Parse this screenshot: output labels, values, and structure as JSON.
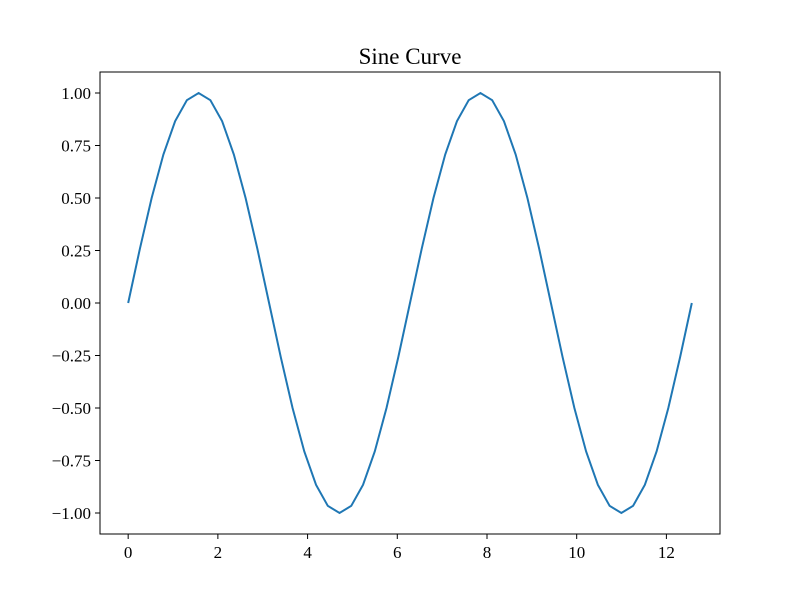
{
  "chart_data": {
    "type": "line",
    "title": "Sine Curve",
    "xlabel": "",
    "ylabel": "",
    "xlim": [
      -0.628,
      13.195
    ],
    "ylim": [
      -1.1,
      1.1
    ],
    "grid": false,
    "xticks": [
      0,
      2,
      4,
      6,
      8,
      10,
      12
    ],
    "xtick_labels": [
      "0",
      "2",
      "4",
      "6",
      "8",
      "10",
      "12"
    ],
    "yticks": [
      -1,
      -0.75,
      -0.5,
      -0.25,
      0,
      0.25,
      0.5,
      0.75,
      1
    ],
    "ytick_labels": [
      "−1.00",
      "−0.75",
      "−0.50",
      "−0.25",
      "0.00",
      "0.25",
      "0.50",
      "0.75",
      "1.00"
    ],
    "series": [
      {
        "color": "#1f77b4",
        "x": [
          0,
          0.2618,
          0.5236,
          0.7854,
          1.0472,
          1.309,
          1.5708,
          1.8326,
          2.0944,
          2.3562,
          2.618,
          2.8798,
          3.1416,
          3.4034,
          3.6652,
          3.927,
          4.1888,
          4.4506,
          4.7124,
          4.9742,
          5.236,
          5.4978,
          5.7596,
          6.0214,
          6.2832,
          6.545,
          6.8068,
          7.0686,
          7.3304,
          7.5922,
          7.854,
          8.1158,
          8.3776,
          8.6394,
          8.9012,
          9.163,
          9.4248,
          9.6866,
          9.9484,
          10.2102,
          10.472,
          10.7338,
          10.9956,
          11.2574,
          11.5192,
          11.781,
          12.0428,
          12.3046,
          12.5664
        ],
        "y": [
          0,
          0.2588,
          0.5,
          0.7071,
          0.866,
          0.9659,
          1,
          0.9659,
          0.866,
          0.7071,
          0.5,
          0.2588,
          0,
          -0.2588,
          -0.5,
          -0.7071,
          -0.866,
          -0.9659,
          -1,
          -0.9659,
          -0.866,
          -0.7071,
          -0.5,
          -0.2588,
          0,
          0.2588,
          0.5,
          0.7071,
          0.866,
          0.9659,
          1,
          0.9659,
          0.866,
          0.7071,
          0.5,
          0.2588,
          0,
          -0.2588,
          -0.5,
          -0.7071,
          -0.866,
          -0.9659,
          -1,
          -0.9659,
          -0.866,
          -0.7071,
          -0.5,
          -0.2588,
          0
        ]
      }
    ]
  }
}
